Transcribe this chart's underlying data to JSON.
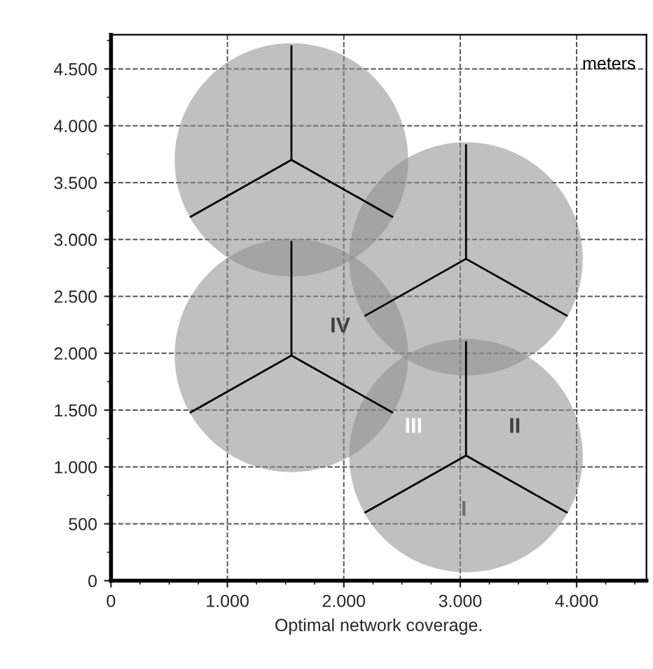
{
  "chart_data": {
    "type": "bubble",
    "xlabel": "Optimal network coverage.",
    "xlim": [
      0,
      4600
    ],
    "ylim": [
      0,
      4800
    ],
    "xticks": [
      0,
      {
        "value": 1000,
        "label": "1.000"
      },
      {
        "value": 2000,
        "label": "2.000"
      },
      {
        "value": 3000,
        "label": "3.000"
      },
      {
        "value": 4000,
        "label": "4.000"
      }
    ],
    "yticks": [
      0,
      500,
      {
        "value": 1000,
        "label": "1.000"
      },
      {
        "value": 1500,
        "label": "1.500"
      },
      {
        "value": 2000,
        "label": "2.000"
      },
      {
        "value": 2500,
        "label": "2.500"
      },
      {
        "value": 3000,
        "label": "3.000"
      },
      {
        "value": 3500,
        "label": "3.500"
      },
      {
        "value": 4000,
        "label": "4.000"
      },
      {
        "value": 4500,
        "label": "4.500"
      }
    ],
    "grid": true,
    "line_style": "solid",
    "series": [
      {
        "color": "#8c8c8c",
        "x": [
          1550,
          3050,
          1550,
          3050
        ],
        "values": [
          3700,
          2830,
          1980,
          1100
        ],
        "sizes": [
          1,
          1,
          1,
          1
        ]
      },
      {
        "type": "line",
        "color": "#000000",
        "x": [
          684,
          1550,
          2416
        ],
        "values": [
          3200,
          3700,
          3200
        ]
      },
      {
        "type": "line",
        "color": "#000000",
        "x": [
          1550,
          1550
        ],
        "values": [
          3700,
          4700
        ]
      },
      {
        "type": "line",
        "color": "#000000",
        "x": [
          2184,
          3050,
          3916
        ],
        "values": [
          2330,
          2830,
          2330
        ]
      },
      {
        "type": "line",
        "color": "#000000",
        "x": [
          3050,
          3050
        ],
        "values": [
          2830,
          3830
        ]
      },
      {
        "type": "line",
        "color": "#000000",
        "x": [
          684,
          1550,
          2416
        ],
        "values": [
          1480,
          1980,
          1480
        ]
      },
      {
        "type": "line",
        "color": "#000000",
        "x": [
          1550,
          1550
        ],
        "values": [
          1980,
          2980
        ]
      },
      {
        "type": "line",
        "color": "#000000",
        "x": [
          2184,
          3050,
          3916
        ],
        "values": [
          600,
          1100,
          600
        ]
      },
      {
        "type": "line",
        "color": "#000000",
        "x": [
          3050,
          3050
        ],
        "values": [
          1100,
          2100
        ]
      }
    ],
    "annotations": [
      "meters",
      "IV",
      "III",
      "II",
      "I"
    ]
  }
}
